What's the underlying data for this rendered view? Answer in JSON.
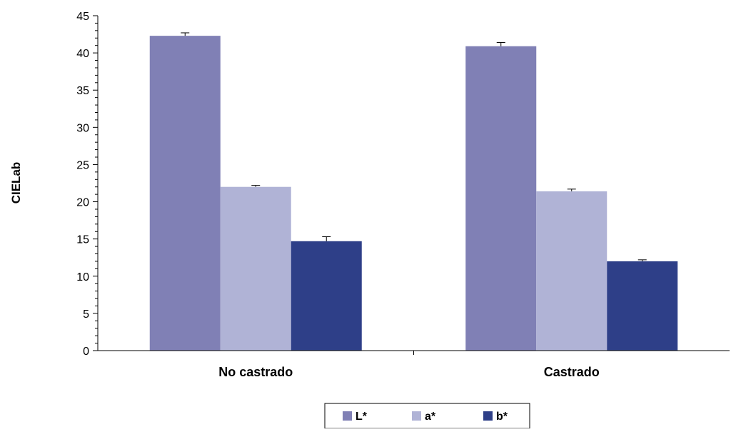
{
  "chart_data": {
    "type": "bar",
    "title": "",
    "xlabel": "",
    "ylabel": "CIELab",
    "ylim": [
      0,
      45
    ],
    "yticks": [
      0,
      5,
      10,
      15,
      20,
      25,
      30,
      35,
      40,
      45
    ],
    "categories": [
      "No castrado",
      "Castrado"
    ],
    "series": [
      {
        "name": "L*",
        "values": [
          42.3,
          40.9
        ],
        "errors": [
          0.4,
          0.5
        ],
        "color": "#8080b5"
      },
      {
        "name": "a*",
        "values": [
          22.0,
          21.4
        ],
        "errors": [
          0.2,
          0.3
        ],
        "color": "#b0b3d6"
      },
      {
        "name": "b*",
        "values": [
          14.7,
          12.0
        ],
        "errors": [
          0.6,
          0.2
        ],
        "color": "#2e3f88"
      }
    ],
    "grid": false,
    "legend": "bottom-center"
  }
}
